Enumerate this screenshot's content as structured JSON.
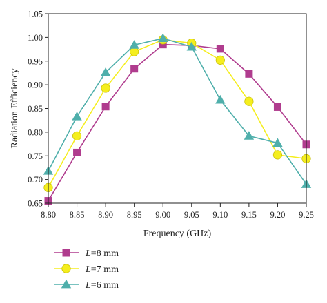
{
  "chart_data": {
    "type": "line",
    "title": "",
    "xlabel": "Frequency (GHz)",
    "ylabel": "Radiation Efficiency",
    "xlim": [
      8.8,
      9.25
    ],
    "ylim": [
      0.65,
      1.05
    ],
    "xticks": [
      "8.80",
      "8.85",
      "8.90",
      "8.95",
      "9.00",
      "9.05",
      "9.10",
      "9.15",
      "9.20",
      "9.25"
    ],
    "yticks": [
      "0.65",
      "0.70",
      "0.75",
      "0.80",
      "0.85",
      "0.90",
      "0.95",
      "1.00",
      "1.05"
    ],
    "grid": false,
    "legend_position": "bottom-left, below plot",
    "series": [
      {
        "name": "L=8 mm",
        "name_italic": "L",
        "name_rest": "=8 mm",
        "color": "#B03C8E",
        "marker": "square",
        "x": [
          8.8,
          8.85,
          8.9,
          8.95,
          9.0,
          9.05,
          9.1,
          9.15,
          9.2,
          9.25
        ],
        "y": [
          0.655,
          0.757,
          0.854,
          0.934,
          0.985,
          0.983,
          0.976,
          0.923,
          0.853,
          0.774
        ]
      },
      {
        "name": "L=7 mm",
        "name_italic": "L",
        "name_rest": "=7 mm",
        "color": "#F5EE1E",
        "marker": "circle",
        "x": [
          8.8,
          8.85,
          8.9,
          8.95,
          9.0,
          9.05,
          9.1,
          9.15,
          9.2,
          9.25
        ],
        "y": [
          0.683,
          0.792,
          0.893,
          0.97,
          0.995,
          0.988,
          0.952,
          0.865,
          0.752,
          0.744
        ]
      },
      {
        "name": "L=6 mm",
        "name_italic": "L",
        "name_rest": "=6 mm",
        "color": "#4FAFAB",
        "marker": "triangle",
        "x": [
          8.8,
          8.85,
          8.9,
          8.95,
          9.0,
          9.05,
          9.1,
          9.15,
          9.2,
          9.25
        ],
        "y": [
          0.718,
          0.833,
          0.926,
          0.984,
          0.998,
          0.98,
          0.868,
          0.792,
          0.777,
          0.69
        ]
      }
    ]
  }
}
